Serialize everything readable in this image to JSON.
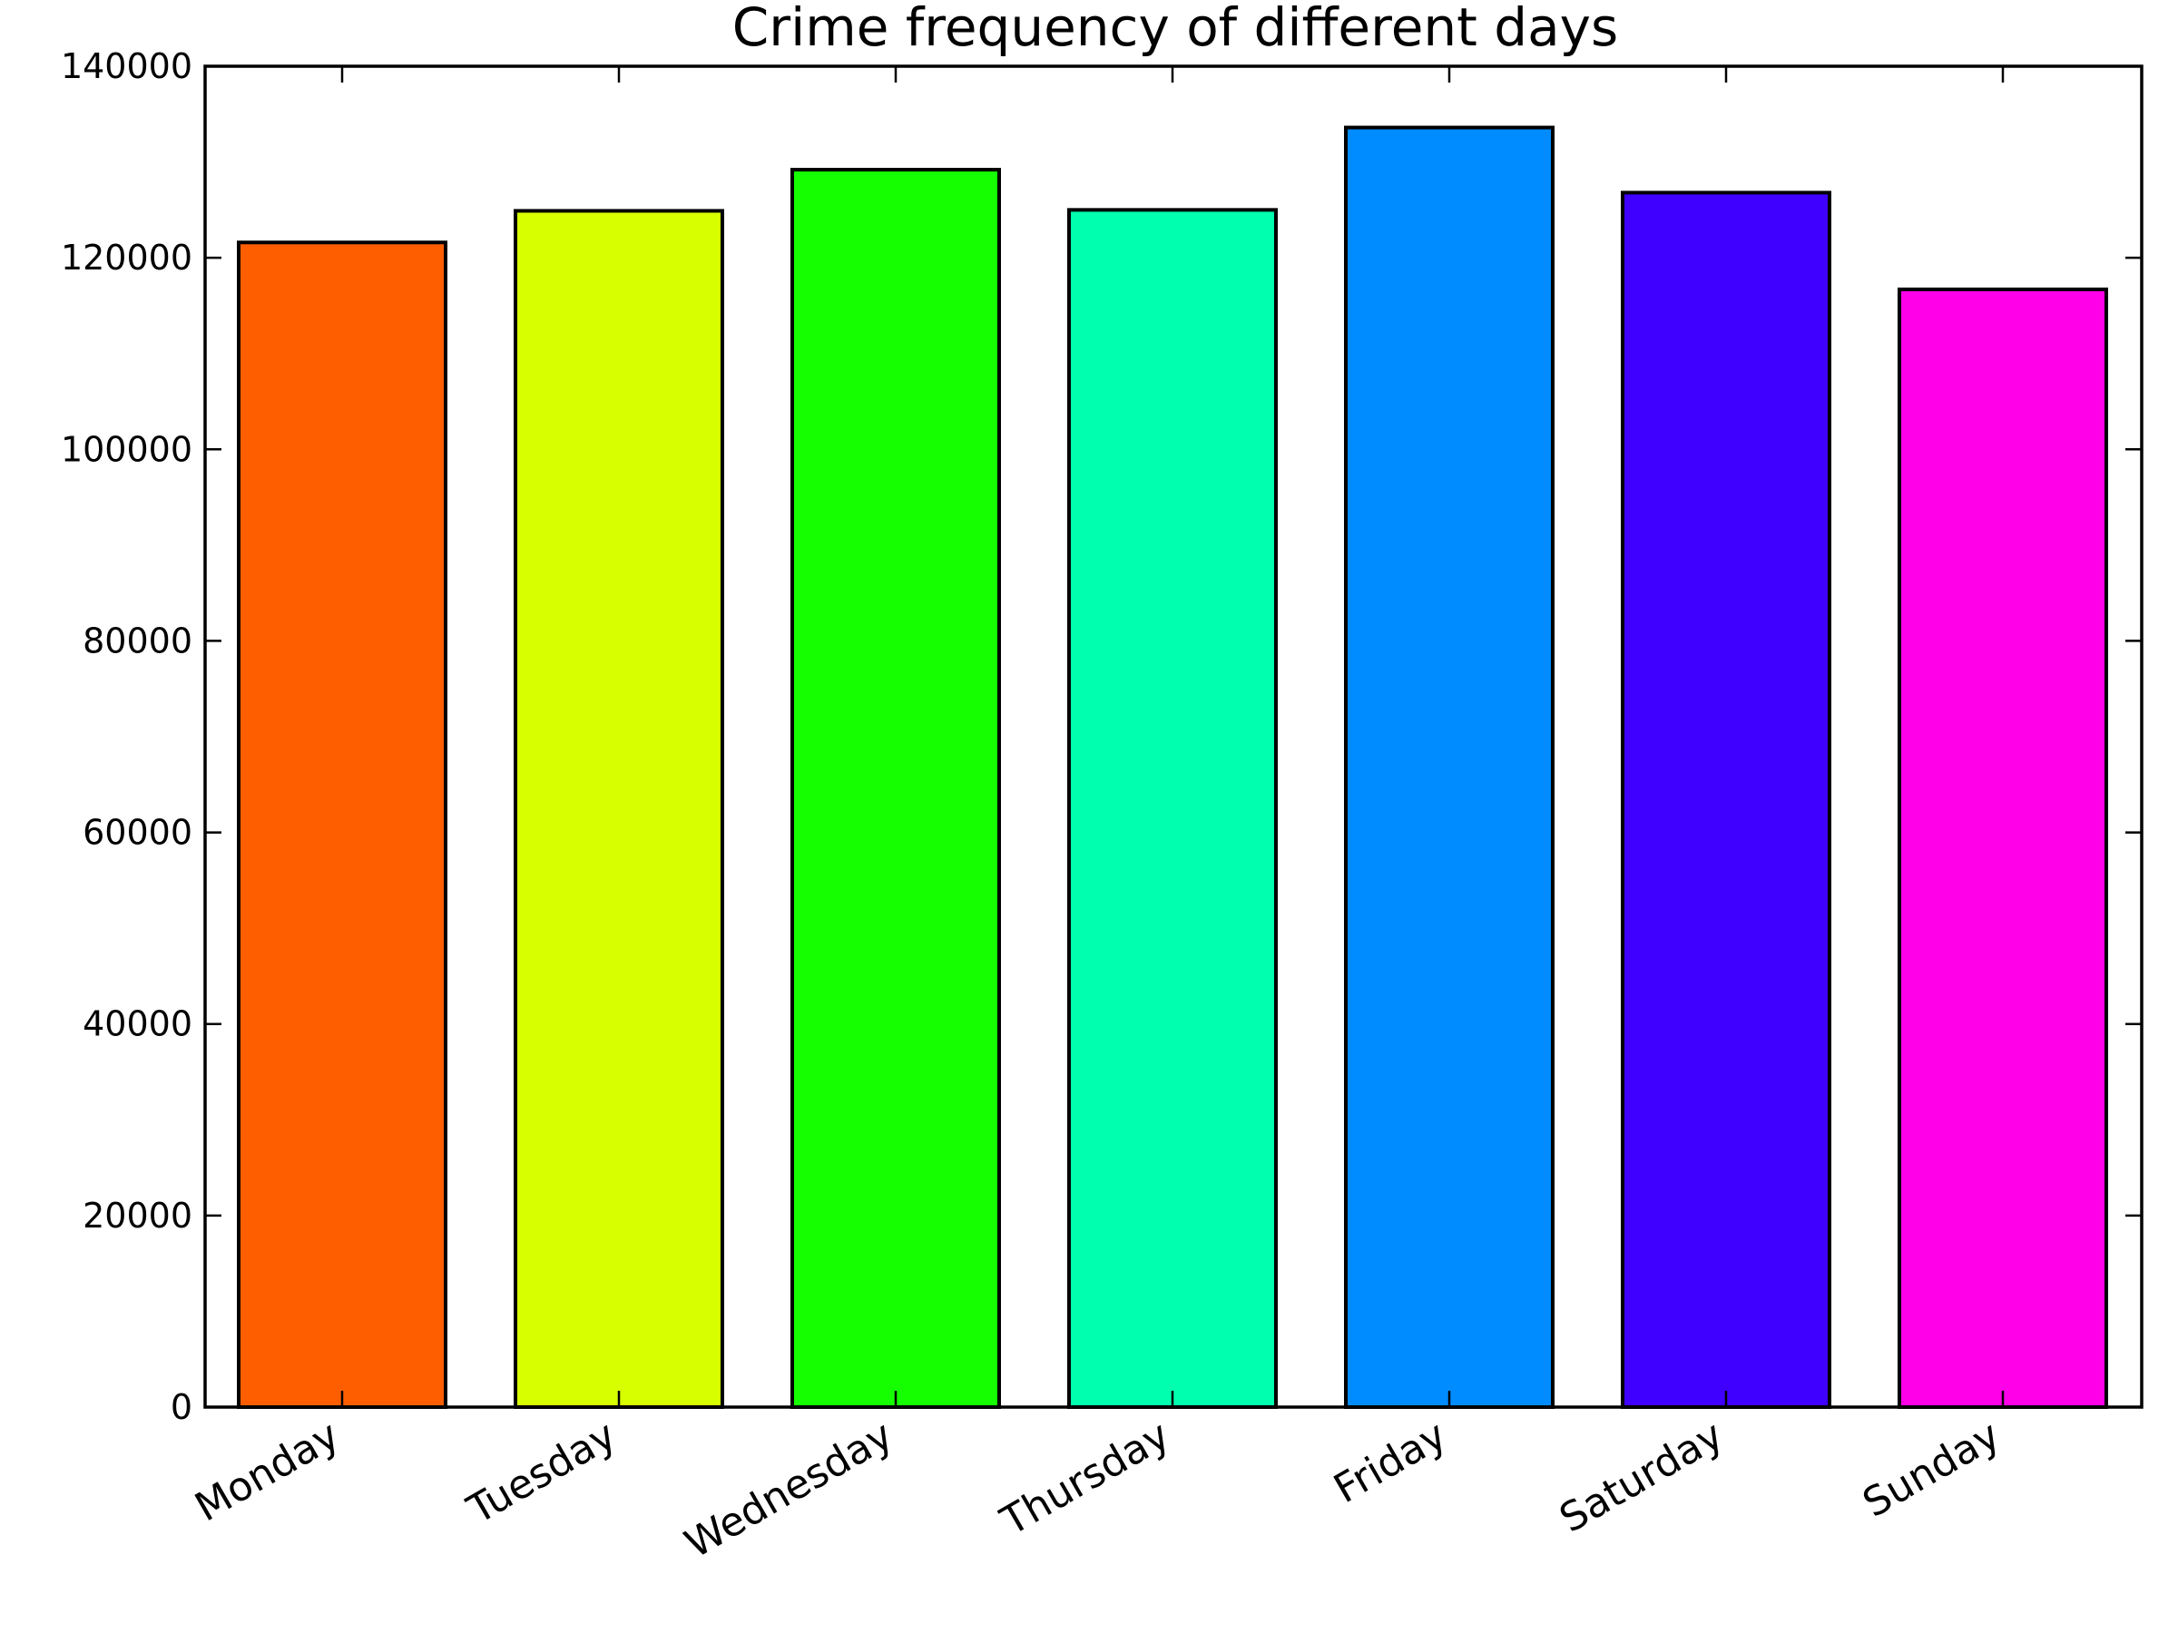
{
  "chart_data": {
    "type": "bar",
    "title": "Crime frequency of different days",
    "xlabel": "",
    "ylabel": "",
    "categories": [
      "Monday",
      "Tuesday",
      "Wednesday",
      "Thursday",
      "Friday",
      "Saturday",
      "Sunday"
    ],
    "values": [
      121600,
      124900,
      129200,
      125000,
      133600,
      126800,
      116700
    ],
    "colors": [
      "#ff5e00",
      "#d7ff00",
      "#15ff00",
      "#00ffaf",
      "#008cff",
      "#3f00ff",
      "#ff00e8"
    ],
    "ylim": [
      0,
      140000
    ],
    "yticks": [
      "0",
      "20000",
      "40000",
      "60000",
      "80000",
      "100000",
      "120000",
      "140000"
    ],
    "grid": false,
    "legend": "none"
  }
}
